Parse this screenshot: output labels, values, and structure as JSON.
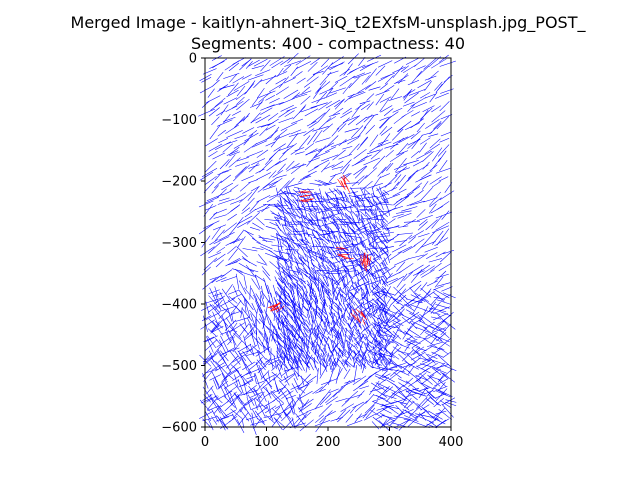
{
  "chart_data": {
    "type": "line",
    "title": "Merged Image - kaitlyn-ahnert-3iQ_t2EXfsM-unsplash.jpg_POST_",
    "subtitle": "Segments: 400 - compactness: 40",
    "xlabel": "",
    "ylabel": "",
    "xlim": [
      0,
      400
    ],
    "ylim": [
      -600,
      0
    ],
    "x_ticks": [
      0,
      100,
      200,
      300,
      400
    ],
    "y_ticks": [
      0,
      -100,
      -200,
      -300,
      -400,
      -500,
      -600
    ],
    "grid": false,
    "legend": "none",
    "series": [
      {
        "color": "#0000ff",
        "note_density": "dense short strokes across whole image",
        "regions": [
          {
            "x": [
              0,
              400
            ],
            "y": [
              -600,
              0
            ],
            "angle_deg": -35,
            "spacing": 13,
            "length": 14
          },
          {
            "x": [
              120,
              300
            ],
            "y": [
              -500,
              -220
            ],
            "angle_deg": 60,
            "spacing": 7,
            "length": 9
          },
          {
            "x": [
              0,
              160
            ],
            "y": [
              -600,
              -380
            ],
            "angle_deg": 60,
            "spacing": 12,
            "length": 14
          },
          {
            "x": [
              280,
              400
            ],
            "y": [
              -600,
              -380
            ],
            "angle_deg": 30,
            "spacing": 12,
            "length": 14
          }
        ]
      },
      {
        "color": "#ff0000",
        "clusters": [
          {
            "x": 165,
            "y": -225
          },
          {
            "x": 225,
            "y": -318
          },
          {
            "x": 260,
            "y": -330
          },
          {
            "x": 250,
            "y": -420
          },
          {
            "x": 115,
            "y": -405
          },
          {
            "x": 225,
            "y": -205
          }
        ]
      }
    ]
  }
}
